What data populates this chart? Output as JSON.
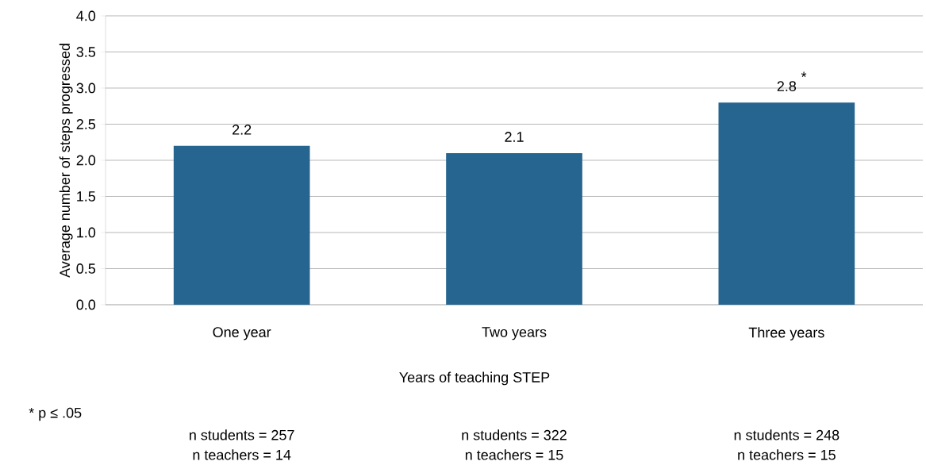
{
  "chart_data": {
    "type": "bar",
    "categories": [
      "One year",
      "Two years",
      "Three years"
    ],
    "values": [
      2.2,
      2.1,
      2.8
    ],
    "color": "#276591",
    "data_labels": true,
    "xlabel": "Years of teaching STEP",
    "ylabel": "Average number of steps progressed",
    "ylim": [
      0,
      4
    ],
    "yticks": [
      {
        "value": 0,
        "label": "0.0"
      },
      {
        "value": 0.5,
        "label": "0.5"
      },
      {
        "value": 1,
        "label": "1.0"
      },
      {
        "value": 1.5,
        "label": "1.5"
      },
      {
        "value": 2,
        "label": "2.0"
      },
      {
        "value": 2.5,
        "label": "2.5"
      },
      {
        "value": 3,
        "label": "3.0"
      },
      {
        "value": 3.5,
        "label": "3.5"
      },
      {
        "value": 4,
        "label": "4.0"
      }
    ],
    "grid": "y",
    "annotations": [
      {
        "text": "*",
        "x": "Three years",
        "y": 2.8
      },
      "* p ≤ .05",
      "n students = 257",
      "n teachers = 14",
      "n students = 322",
      "n teachers = 15",
      "n students = 248",
      "n teachers = 15"
    ]
  }
}
